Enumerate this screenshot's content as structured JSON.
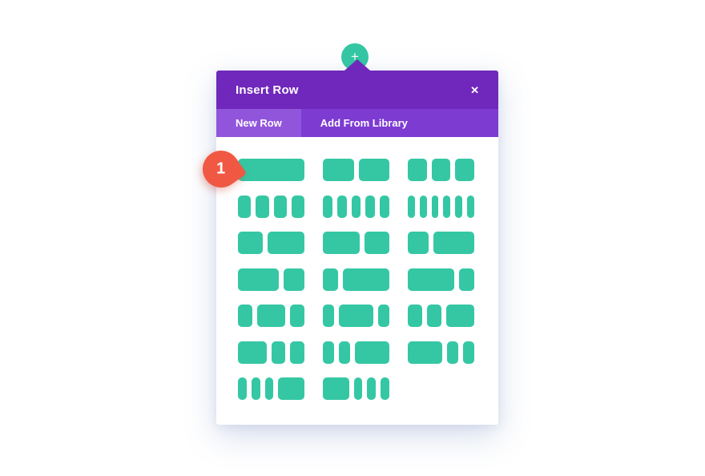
{
  "page": {
    "background_color": "#ffffff"
  },
  "add_row_button": {
    "plus_glyph": "+",
    "color": "#35c7a4"
  },
  "modal": {
    "title": "Insert Row",
    "close_glyph": "✕",
    "colors": {
      "header": "#6f28bb",
      "tabbar": "#7d3bd2",
      "active_tab": "#9155dc",
      "column_block": "#35c7a4"
    },
    "tabs": [
      {
        "label": "New Row",
        "active": true
      },
      {
        "label": "Add From Library",
        "active": false
      }
    ],
    "layouts": [
      {
        "name": "full-width",
        "columns": [
          1
        ]
      },
      {
        "name": "half-half",
        "columns": [
          1,
          1
        ]
      },
      {
        "name": "thirds-x3",
        "columns": [
          1,
          1,
          1
        ]
      },
      {
        "name": "quarters-x4",
        "columns": [
          1,
          1,
          1,
          1
        ]
      },
      {
        "name": "fifths-x5",
        "columns": [
          1,
          1,
          1,
          1,
          1
        ]
      },
      {
        "name": "sixths-x6",
        "columns": [
          1,
          1,
          1,
          1,
          1,
          1
        ]
      },
      {
        "name": "two-fifths-three-fifths",
        "columns": [
          2,
          3
        ]
      },
      {
        "name": "three-fifths-two-fifths",
        "columns": [
          3,
          2
        ]
      },
      {
        "name": "one-third-two-thirds",
        "columns": [
          1,
          2
        ]
      },
      {
        "name": "two-thirds-one-third",
        "columns": [
          2,
          1
        ]
      },
      {
        "name": "one-fourth-three-fourths",
        "columns": [
          1,
          3
        ]
      },
      {
        "name": "three-fourths-one-fourth",
        "columns": [
          3,
          1
        ]
      },
      {
        "name": "quarter-half-quarter",
        "columns": [
          1,
          2,
          1
        ]
      },
      {
        "name": "fifth-three-fifths-fifth",
        "columns": [
          1,
          3,
          1
        ]
      },
      {
        "name": "quarter-quarter-half",
        "columns": [
          1,
          1,
          2
        ]
      },
      {
        "name": "half-quarter-quarter",
        "columns": [
          2,
          1,
          1
        ]
      },
      {
        "name": "fifth-fifth-three-fifths",
        "columns": [
          1,
          1,
          3
        ]
      },
      {
        "name": "three-fifths-fifth-fifth",
        "columns": [
          3,
          1,
          1
        ]
      },
      {
        "name": "sixth-sixth-sixth-half",
        "columns": [
          1,
          1,
          1,
          3
        ]
      },
      {
        "name": "half-sixth-sixth-sixth",
        "columns": [
          3,
          1,
          1,
          1
        ]
      }
    ]
  },
  "marker": {
    "label": "1",
    "color": "#f05843"
  }
}
